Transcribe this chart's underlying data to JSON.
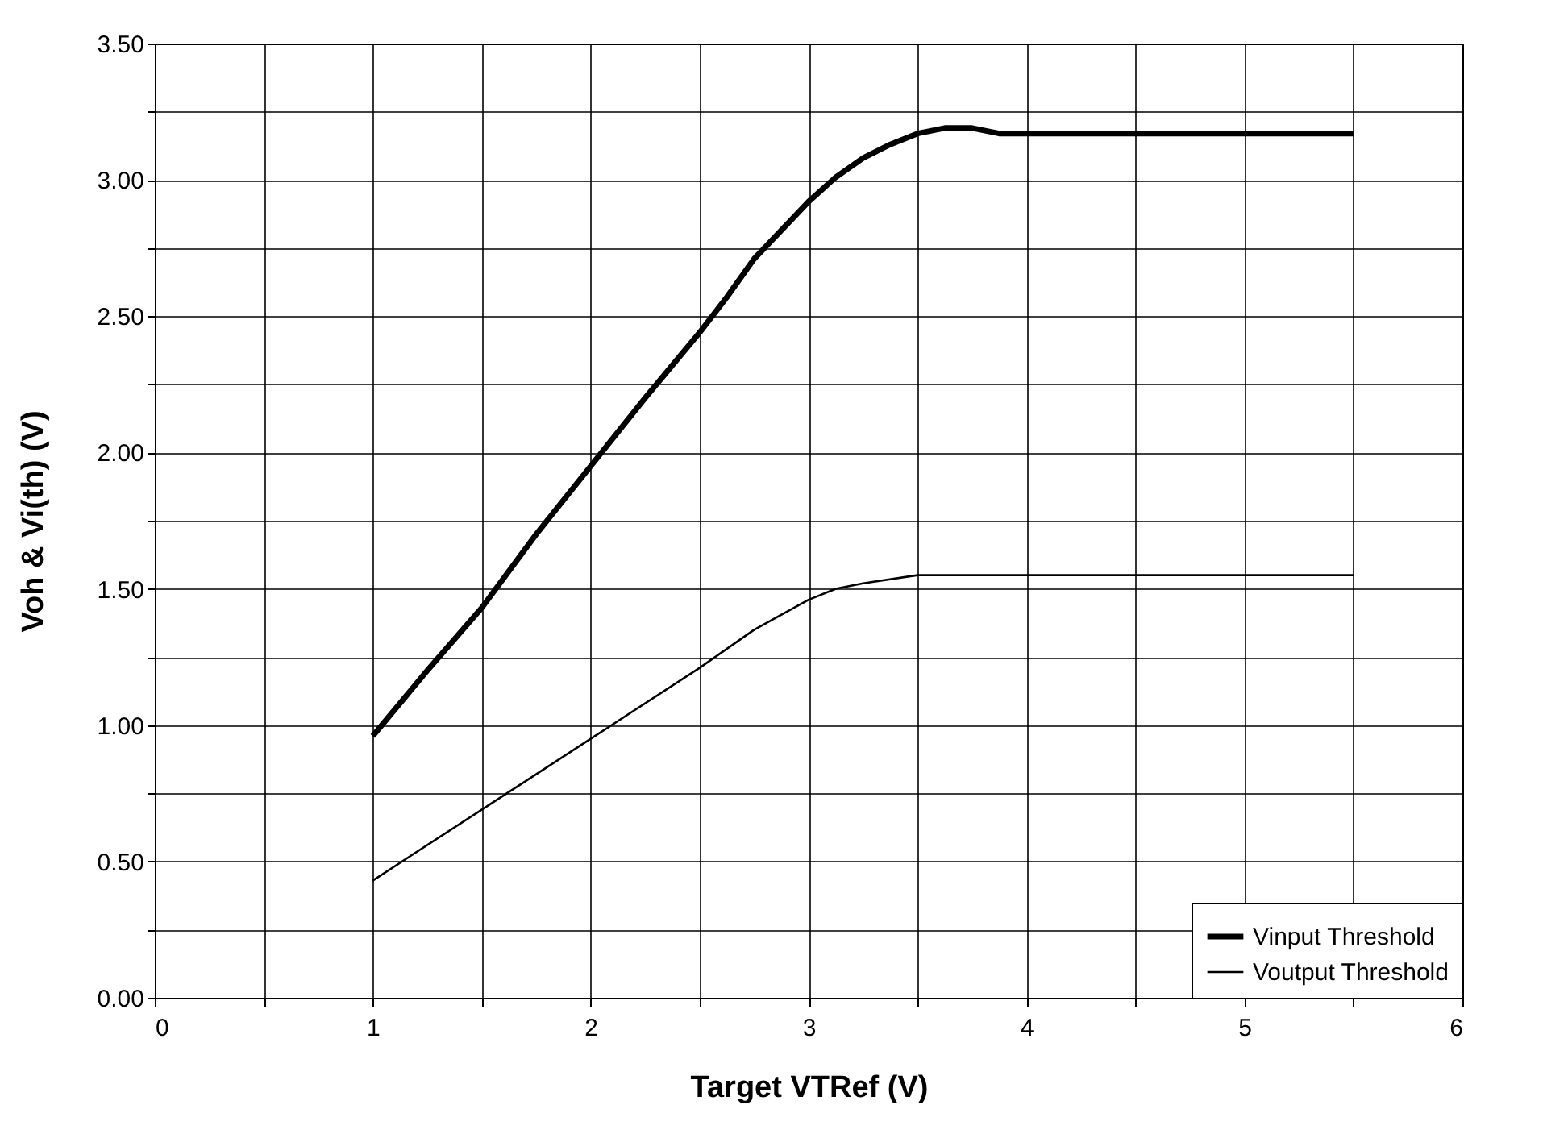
{
  "chart_data": {
    "type": "line",
    "xlabel": "Target VTRef (V)",
    "ylabel": "Voh & Vi(th) (V)",
    "xlim": [
      0,
      6
    ],
    "ylim": [
      0,
      3.5
    ],
    "xticks": [
      0,
      {
        "value": 0.5,
        "label": null
      },
      1,
      {
        "value": 1.5,
        "label": null
      },
      2,
      {
        "value": 2.5,
        "label": null
      },
      3,
      {
        "value": 3.5,
        "label": null
      },
      4,
      {
        "value": 4.5,
        "label": null
      },
      5,
      {
        "value": 5.5,
        "label": null
      },
      6
    ],
    "yticks": [
      {
        "value": 0,
        "label": "0.00"
      },
      {
        "value": 0.25,
        "label": null
      },
      {
        "value": 0.5,
        "label": "0.50"
      },
      {
        "value": 0.75,
        "label": null
      },
      {
        "value": 1,
        "label": "1.00"
      },
      {
        "value": 1.25,
        "label": null
      },
      {
        "value": 1.5,
        "label": "1.50"
      },
      {
        "value": 1.75,
        "label": null
      },
      {
        "value": 2,
        "label": "2.00"
      },
      {
        "value": 2.25,
        "label": null
      },
      {
        "value": 2.5,
        "label": "2.50"
      },
      {
        "value": 2.75,
        "label": null
      },
      {
        "value": 3,
        "label": "3.00"
      },
      {
        "value": 3.25,
        "label": null
      },
      {
        "value": 3.5,
        "label": "3.50"
      }
    ],
    "grid": true,
    "legend": "bottom right",
    "marker": "none",
    "line_style": "solid",
    "series": [
      {
        "name": "Vinput Threshold",
        "color": "#000000",
        "x": [
          1,
          1.25,
          1.5,
          1.75,
          2,
          2.25,
          2.5,
          2.625,
          2.75,
          3,
          3.125,
          3.25,
          3.375,
          3.5,
          3.625,
          3.75,
          3.875,
          4,
          5.5
        ],
        "values": [
          0.96,
          1.2,
          1.43,
          1.7,
          1.95,
          2.2,
          2.44,
          2.57,
          2.71,
          2.92,
          3.01,
          3.08,
          3.13,
          3.17,
          3.19,
          3.19,
          3.17,
          3.17,
          3.17
        ]
      },
      {
        "name": "Voutput Threshold",
        "color": "#000000",
        "x": [
          1,
          1.5,
          2,
          2.5,
          2.75,
          3,
          3.125,
          3.25,
          3.5,
          5.5
        ],
        "values": [
          0.43,
          0.69,
          0.95,
          1.21,
          1.35,
          1.46,
          1.5,
          1.52,
          1.55,
          1.55
        ]
      }
    ]
  }
}
